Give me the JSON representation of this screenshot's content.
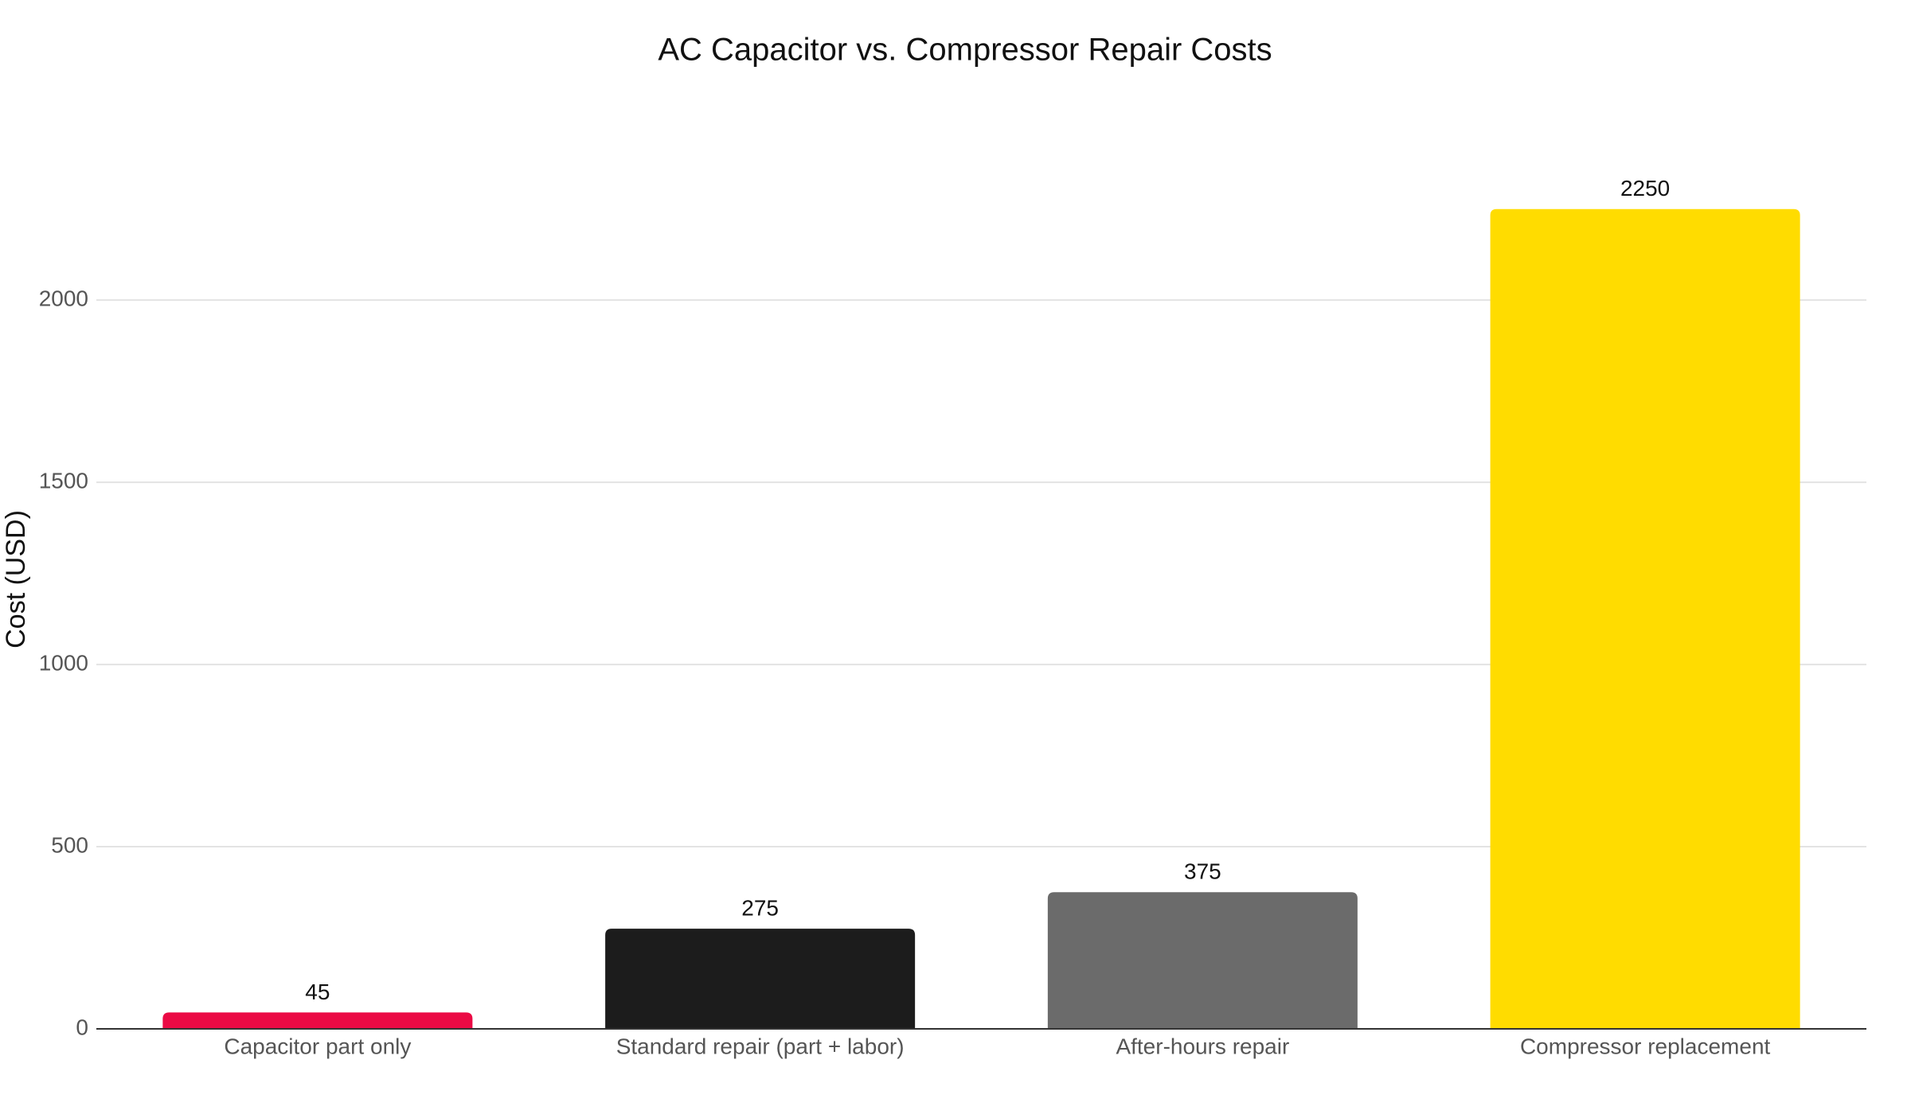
{
  "chart_data": {
    "type": "bar",
    "title": "AC Capacitor vs. Compressor Repair Costs",
    "y_label": "Cost (USD)",
    "categories": [
      "Capacitor part only",
      "Standard repair (part + labor)",
      "After-hours repair",
      "Compressor replacement"
    ],
    "values": [
      45,
      275,
      375,
      2250
    ],
    "colors": [
      "#eb0a44",
      "#1c1c1c",
      "#6b6b6b",
      "#ffdc00"
    ],
    "ylim": [
      0,
      2400
    ],
    "yticks": [
      0,
      500,
      1000,
      1500,
      2000
    ],
    "grid": true
  }
}
